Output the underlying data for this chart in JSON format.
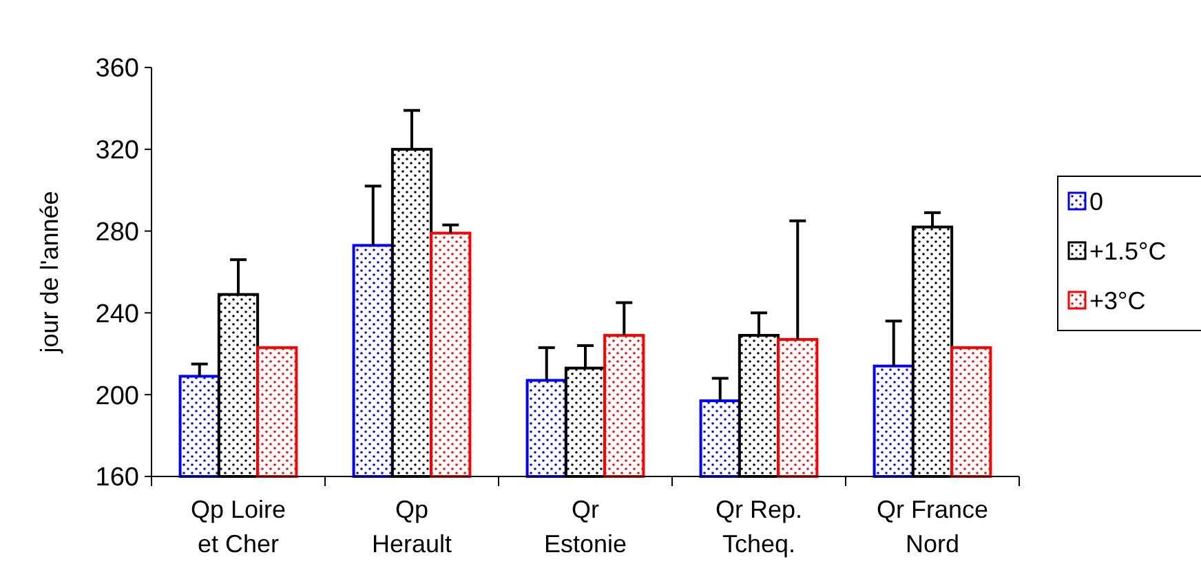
{
  "chart_data": {
    "type": "bar",
    "ylabel": "jour de l'année",
    "categories": [
      "Qp Loire et Cher",
      "Qp Herault",
      "Qr Estonie",
      "Qr Rep. Tcheq.",
      "Qr France Nord"
    ],
    "series": [
      {
        "name": "0",
        "color": "#0000ff",
        "values": [
          209,
          273,
          207,
          197,
          214
        ],
        "errors": [
          [
            209,
            215
          ],
          [
            273,
            302
          ],
          [
            207,
            223
          ],
          [
            197,
            208
          ],
          [
            214,
            236
          ]
        ]
      },
      {
        "name": "+1.5°C",
        "color": "#000000",
        "values": [
          249,
          320,
          213,
          229,
          282
        ],
        "errors": [
          [
            249,
            266
          ],
          [
            320,
            339
          ],
          [
            213,
            224
          ],
          [
            229,
            240
          ],
          [
            282,
            289
          ]
        ]
      },
      {
        "name": "+3°C",
        "color": "#ff0000",
        "values": [
          223,
          279,
          229,
          227,
          223
        ],
        "errors": [
          null,
          [
            279,
            283
          ],
          [
            229,
            245
          ],
          [
            227,
            285
          ],
          null
        ]
      }
    ],
    "ylim": [
      160,
      360
    ],
    "yticks": [
      160,
      200,
      240,
      280,
      320,
      360
    ],
    "grid": false,
    "legend": "right"
  }
}
